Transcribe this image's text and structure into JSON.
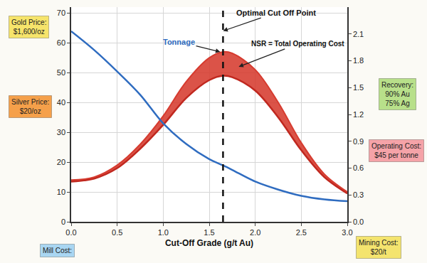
{
  "chart_data": {
    "type": "line",
    "x_label": "Cut-Off Grade (g/t Au)",
    "x": [
      0,
      0.25,
      0.5,
      0.75,
      1,
      1.25,
      1.5,
      1.65,
      1.75,
      2,
      2.25,
      2.5,
      2.75,
      3
    ],
    "series": [
      {
        "type": "line",
        "color": "#c0281f",
        "values": [
          13.5,
          14.5,
          18,
          24.5,
          32.5,
          41.5,
          47.5,
          49,
          48.5,
          44,
          35,
          24,
          15,
          9.5
        ]
      },
      {
        "type": "area",
        "color": "#d63b2f",
        "values": [
          14,
          15,
          19,
          26,
          35.5,
          47,
          55,
          57,
          56.5,
          51,
          40,
          26.5,
          16,
          10
        ]
      },
      {
        "type": "line",
        "color": "#2f6cc0",
        "axis": "y2",
        "values": [
          2.13,
          1.92,
          1.68,
          1.42,
          1.1,
          0.87,
          0.7,
          0.63,
          0.58,
          0.45,
          0.36,
          0.29,
          0.25,
          0.23
        ]
      }
    ],
    "xlim": [
      0,
      3
    ],
    "xticks": [
      {
        "value": 0,
        "label": "0.0"
      },
      0.5,
      {
        "value": 1,
        "label": "1.0"
      },
      1.5,
      {
        "value": 2,
        "label": "2.0"
      },
      2.5,
      {
        "value": 3,
        "label": "3.0"
      }
    ],
    "ylim": [
      0,
      72
    ],
    "yticks": [
      0,
      10,
      20,
      30,
      40,
      50,
      60,
      70
    ],
    "y2lim": [
      0,
      2.4
    ],
    "y2ticks": [
      {
        "value": 0,
        "label": "0.0"
      },
      0.3,
      0.6,
      0.9,
      1.2,
      1.5,
      1.8,
      2.1
    ],
    "grid": true,
    "annotations": [
      {
        "text": "Tonnage",
        "x": 1.62,
        "y": 57,
        "color": "#2f6cc0"
      },
      {
        "text": "Optimal Cut Off Point",
        "x": 1.65,
        "y": 64,
        "line_style": "dashed"
      },
      {
        "text": "NSR = Total Operating Cost",
        "x": 1.82,
        "y": 52
      }
    ],
    "notes": [
      {
        "lines": [
          "Gold Price:",
          "$1,600/oz"
        ],
        "color": "#f6e46b"
      },
      {
        "lines": [
          "Silver Price:",
          "$20/oz"
        ],
        "color": "#f5a04a"
      },
      {
        "lines": [
          "Recovery:",
          "90% Au",
          "75% Ag"
        ],
        "color": "#b8e08a"
      },
      {
        "lines": [
          "Operating Cost:",
          "$45 per tonne"
        ],
        "color": "#f5a3a8"
      },
      {
        "lines": [
          "Mill Cost:"
        ],
        "color": "#a9d6f2"
      },
      {
        "lines": [
          "Mining Cost:",
          "$20/t"
        ],
        "color": "#f4e46e"
      }
    ]
  }
}
